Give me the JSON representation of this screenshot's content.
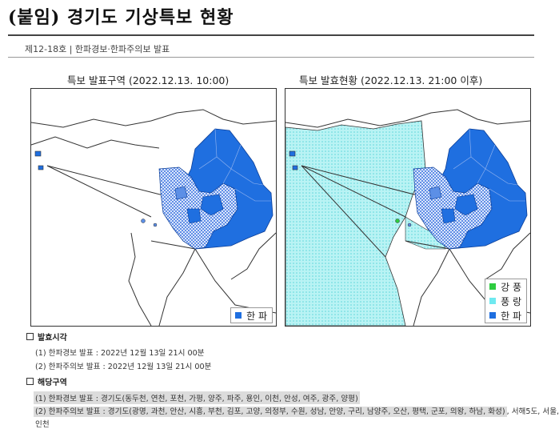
{
  "header": {
    "title": "(붙임) 경기도 기상특보 현황",
    "doc_no": "제12-18호 | 한파경보·한파주의보 발표"
  },
  "maps": {
    "left": {
      "title": "특보 발표구역 (2022.12.13. 10:00)",
      "legend": [
        {
          "label": "한 파",
          "color": "#1f6fe0"
        }
      ]
    },
    "right": {
      "title": "특보 발효현황 (2022.12.13. 21:00 이후)",
      "legend": [
        {
          "label": "강 풍",
          "color": "#2ecc40"
        },
        {
          "label": "풍 랑",
          "color": "#6fe9f0"
        },
        {
          "label": "한 파",
          "color": "#1f6fe0"
        }
      ]
    }
  },
  "colors": {
    "warning_blue": "#1f6fe0",
    "advisory_blue": "#5c8fe6",
    "sea_cyan": "#9fecee",
    "border": "#333333"
  },
  "section_time": {
    "heading": "발효시각",
    "lines": [
      "(1) 한파경보 발표 : 2022년 12월 13일 21시 00분",
      "(2) 한파주의보 발표 : 2022년 12월 13일 21시 00분"
    ]
  },
  "section_area": {
    "heading": "해당구역",
    "line1": "(1) 한파경보 발표 : 경기도(동두천, 연천, 포천, 가평, 양주, 파주, 용인, 이천, 안성, 여주, 광주, 양평)",
    "line2_highlight": "(2) 한파주의보 발표 : 경기도(광명, 과천, 안산, 시흥, 부천, 김포, 고양, 의정부, 수원, 성남, 안양, 구리, 남양주, 오산, 평택, 군포, 의왕, 하남, 화성)",
    "line2_rest": ", 서해5도, 서울,",
    "line3": "인천"
  }
}
